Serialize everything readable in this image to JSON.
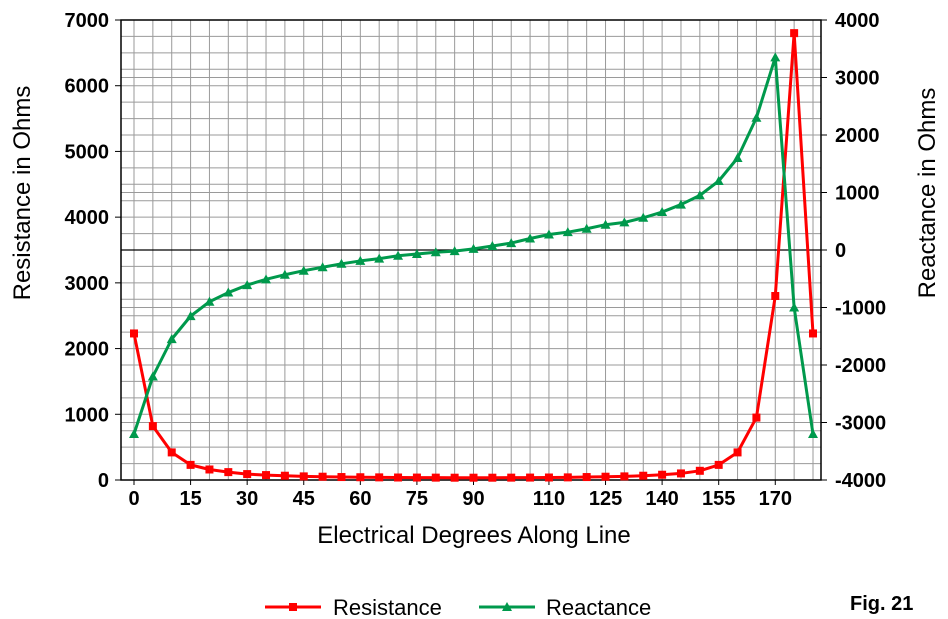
{
  "figure_label": "Fig. 21",
  "colors": {
    "resistance": "#ff0000",
    "reactance": "#00994c",
    "grid": "#9a9a9a"
  },
  "chart_data": {
    "type": "line",
    "xlabel": "Electrical Degrees Along Line",
    "ylabel": "Resistance in Ohms",
    "y2label": "Reactance in Ohms",
    "x": [
      0,
      5,
      10,
      15,
      20,
      25,
      30,
      35,
      40,
      45,
      50,
      55,
      60,
      65,
      70,
      75,
      80,
      85,
      90,
      95,
      100,
      105,
      110,
      115,
      120,
      125,
      130,
      135,
      140,
      145,
      150,
      155,
      160,
      165,
      170,
      175,
      180
    ],
    "x_tick_labels": [
      "0",
      "15",
      "30",
      "45",
      "60",
      "75",
      "90",
      "110",
      "125",
      "140",
      "155",
      "170"
    ],
    "x_tick_positions": [
      0,
      15,
      30,
      45,
      60,
      75,
      90,
      110,
      125,
      140,
      155,
      170
    ],
    "ylim": [
      0,
      7000
    ],
    "y_ticks": [
      "0",
      "1000",
      "2000",
      "3000",
      "4000",
      "5000",
      "6000",
      "7000"
    ],
    "y2lim": [
      -4000,
      4000
    ],
    "y2_ticks": [
      "-4000",
      "-3000",
      "-2000",
      "-1000",
      "0",
      "1000",
      "2000",
      "3000",
      "4000"
    ],
    "grid": true,
    "legend_position": "bottom-center",
    "series": [
      {
        "name": "Resistance",
        "axis": "left",
        "marker": "square",
        "values": [
          2230,
          820,
          420,
          230,
          160,
          120,
          90,
          75,
          65,
          55,
          50,
          45,
          42,
          40,
          38,
          37,
          36,
          35,
          35,
          35,
          36,
          37,
          38,
          40,
          45,
          50,
          55,
          65,
          80,
          100,
          140,
          230,
          420,
          950,
          2800,
          6800,
          2230
        ]
      },
      {
        "name": "Reactance",
        "axis": "right",
        "marker": "triangle",
        "values": [
          -3200,
          -2200,
          -1550,
          -1150,
          -900,
          -740,
          -610,
          -510,
          -430,
          -360,
          -300,
          -240,
          -190,
          -150,
          -100,
          -70,
          -40,
          -20,
          20,
          70,
          120,
          200,
          270,
          310,
          370,
          440,
          480,
          560,
          660,
          790,
          950,
          1200,
          1600,
          2300,
          3350,
          -1000,
          -3200
        ]
      }
    ]
  }
}
